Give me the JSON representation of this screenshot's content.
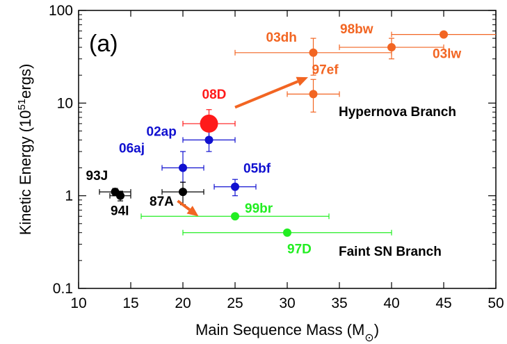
{
  "chart_data": {
    "type": "scatter",
    "panel_label": "(a)",
    "xlabel": "Main Sequence Mass (M",
    "xlabel_sub": "⊙",
    "xlabel_close": ")",
    "ylabel": "Kinetic Energy (10",
    "ylabel_sup": "51",
    "ylabel_end": "ergs)",
    "xlim": [
      10,
      50
    ],
    "ylim": [
      0.1,
      100
    ],
    "yscale": "log",
    "x_ticks": [
      "10",
      "15",
      "20",
      "25",
      "30",
      "35",
      "40",
      "45",
      "50"
    ],
    "y_ticks": [
      "0.1",
      "1",
      "10",
      "100"
    ],
    "colors": {
      "hypernova": "#f26522",
      "normal": "#1010d0",
      "faint": "#22ee22",
      "black": "#000000",
      "highlight": "#ff1a1a"
    },
    "points": [
      {
        "name": "08D",
        "label": "08D",
        "x": 22.5,
        "y": 6,
        "xerr": [
          20,
          25
        ],
        "yerr": [
          4,
          8.5
        ],
        "color": "#ff1a1a",
        "size": "large"
      },
      {
        "name": "02ap",
        "label": "02ap",
        "x": 22.5,
        "y": 4,
        "xerr": [
          20,
          25
        ],
        "yerr": [
          3,
          5
        ],
        "color": "#1010d0"
      },
      {
        "name": "06aj",
        "label": "06aj",
        "x": 20,
        "y": 2,
        "xerr": [
          18,
          22
        ],
        "yerr": [
          1.4,
          3
        ],
        "color": "#1010d0"
      },
      {
        "name": "05bf",
        "label": "05bf",
        "x": 25,
        "y": 1.25,
        "xerr": [
          23,
          27
        ],
        "yerr": [
          1.0,
          1.5
        ],
        "color": "#1010d0"
      },
      {
        "name": "93J",
        "label": "93J",
        "x": 13.5,
        "y": 1.1,
        "xerr": [
          12,
          15
        ],
        "yerr": [
          1.0,
          1.2
        ],
        "color": "#000000"
      },
      {
        "name": "94I",
        "label": "94I",
        "x": 14,
        "y": 1.0,
        "xerr": [
          13,
          15
        ],
        "yerr": [
          0.88,
          1.12
        ],
        "color": "#000000"
      },
      {
        "name": "87A",
        "label": "87A",
        "x": 20,
        "y": 1.1,
        "xerr": [
          18,
          22
        ],
        "yerr": [
          0.8,
          1.4
        ],
        "color": "#000000"
      },
      {
        "name": "99br",
        "label": "99br",
        "x": 25,
        "y": 0.6,
        "xerr": [
          16,
          34
        ],
        "yerr": null,
        "color": "#22ee22"
      },
      {
        "name": "97D",
        "label": "97D",
        "x": 30,
        "y": 0.4,
        "xerr": [
          20,
          40
        ],
        "yerr": null,
        "color": "#22ee22"
      },
      {
        "name": "03dh",
        "label": "03dh",
        "x": 32.5,
        "y": 35,
        "xerr": [
          25,
          40
        ],
        "yerr": [
          20,
          50
        ],
        "color": "#f26522"
      },
      {
        "name": "97ef",
        "label": "97ef",
        "x": 32.5,
        "y": 12.5,
        "xerr": [
          30,
          35
        ],
        "yerr": [
          8,
          18
        ],
        "color": "#f26522"
      },
      {
        "name": "98bw",
        "label": "98bw",
        "x": 40,
        "y": 40,
        "xerr": [
          35,
          45
        ],
        "yerr": [
          30,
          50
        ],
        "color": "#f26522"
      },
      {
        "name": "03lw",
        "label": "03lw",
        "x": 45,
        "y": 55,
        "xerr": [
          40,
          50
        ],
        "yerr": null,
        "color": "#f26522"
      }
    ],
    "arrows": [
      {
        "name": "hypernova-arrow",
        "from": [
          25,
          9
        ],
        "to": [
          32,
          19
        ],
        "color": "#f26522"
      },
      {
        "name": "faint-arrow",
        "from": [
          19.5,
          0.88
        ],
        "to": [
          21.5,
          0.6
        ],
        "color": "#f26522"
      }
    ],
    "annotations": {
      "hypernova_branch": "Hypernova Branch",
      "faint_branch": "Faint SN Branch"
    }
  }
}
